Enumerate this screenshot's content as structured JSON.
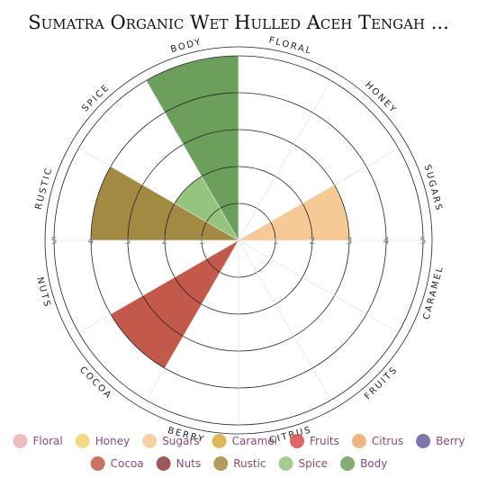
{
  "chart_data": {
    "type": "polar-area",
    "title": "Sumatra Organic Wet Hulled Aceh Tengah ...",
    "categories": [
      "Floral",
      "Honey",
      "Sugars",
      "Caramel",
      "Fruits",
      "Citrus",
      "Berry",
      "Cocoa",
      "Nuts",
      "Rustic",
      "Spice",
      "Body"
    ],
    "values": [
      0,
      0,
      3,
      0,
      0,
      0,
      0,
      4,
      0,
      4,
      2,
      5
    ],
    "colors": [
      "#eab0b3",
      "#f1d46c",
      "#f6c995",
      "#d6ab3e",
      "#d94a4c",
      "#edaa70",
      "#6b5b9d",
      "#c2594a",
      "#8b3c3e",
      "#a38a42",
      "#95c47f",
      "#6b9f5b"
    ],
    "rlim": [
      0,
      5
    ],
    "rticks": [
      1,
      2,
      3,
      4,
      5
    ],
    "grid": true
  }
}
